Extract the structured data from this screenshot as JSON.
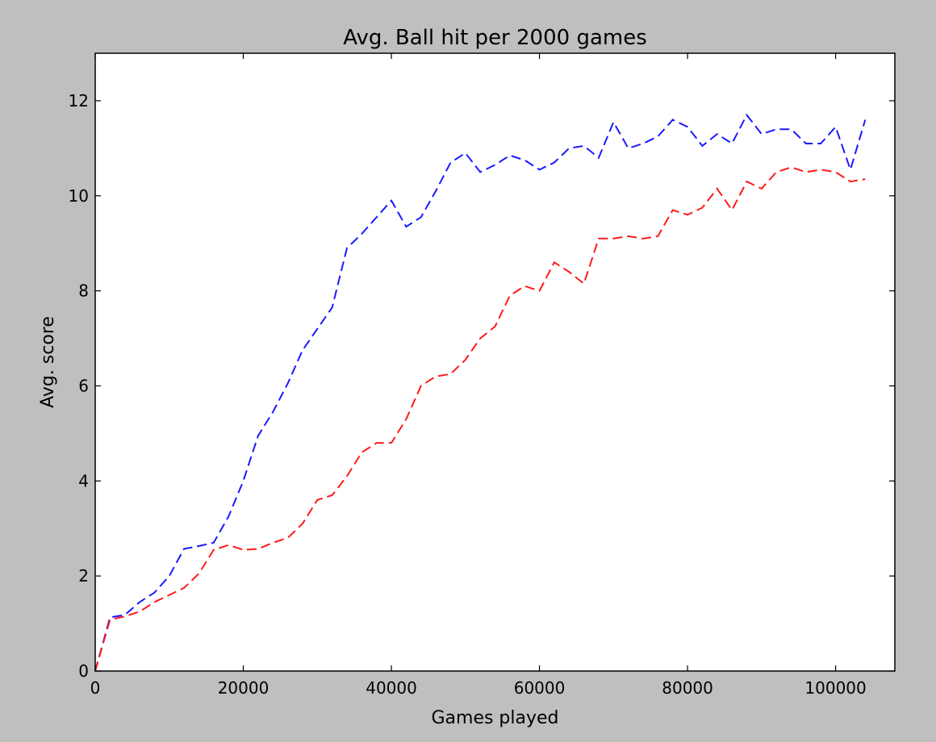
{
  "chart_data": {
    "type": "line",
    "title": "Avg. Ball hit per 2000 games",
    "xlabel": "Games played",
    "ylabel": "Avg. score",
    "xlim": [
      0,
      108000
    ],
    "ylim": [
      0,
      13
    ],
    "xticks": [
      0,
      20000,
      40000,
      60000,
      80000,
      100000
    ],
    "xtick_labels": [
      "0",
      "20000",
      "40000",
      "60000",
      "80000",
      "100000"
    ],
    "yticks": [
      0,
      2,
      4,
      6,
      8,
      10,
      12
    ],
    "ytick_labels": [
      "0",
      "2",
      "4",
      "6",
      "8",
      "10",
      "12"
    ],
    "grid": false,
    "legend": "none",
    "series": [
      {
        "color": "#1a1aff",
        "style": "dashed",
        "x": [
          0,
          2000,
          4000,
          6000,
          8000,
          10000,
          12000,
          14000,
          16000,
          18000,
          20000,
          22000,
          24000,
          26000,
          28000,
          30000,
          32000,
          34000,
          36000,
          38000,
          40000,
          42000,
          44000,
          46000,
          48000,
          50000,
          52000,
          54000,
          56000,
          58000,
          60000,
          62000,
          64000,
          66000,
          68000,
          70000,
          72000,
          74000,
          76000,
          78000,
          80000,
          82000,
          84000,
          86000,
          88000,
          90000,
          92000,
          94000,
          96000,
          98000,
          100000,
          102000,
          104000
        ],
        "y": [
          0,
          1.13,
          1.18,
          1.45,
          1.65,
          2.0,
          2.57,
          2.63,
          2.7,
          3.25,
          4.0,
          4.95,
          5.45,
          6.05,
          6.75,
          7.2,
          7.65,
          8.9,
          9.2,
          9.55,
          9.9,
          9.35,
          9.55,
          10.1,
          10.7,
          10.9,
          10.5,
          10.65,
          10.85,
          10.75,
          10.55,
          10.7,
          11.0,
          11.05,
          10.8,
          11.55,
          11.0,
          11.1,
          11.25,
          11.6,
          11.45,
          11.05,
          11.3,
          11.1,
          11.7,
          11.3,
          11.4,
          11.4,
          11.1,
          11.1,
          11.45,
          10.55,
          11.6
        ]
      },
      {
        "color": "#ff1a1a",
        "style": "dashed",
        "x": [
          0,
          2000,
          4000,
          6000,
          8000,
          10000,
          12000,
          14000,
          16000,
          18000,
          20000,
          22000,
          24000,
          26000,
          28000,
          30000,
          32000,
          34000,
          36000,
          38000,
          40000,
          42000,
          44000,
          46000,
          48000,
          50000,
          52000,
          54000,
          56000,
          58000,
          60000,
          62000,
          64000,
          66000,
          68000,
          70000,
          72000,
          74000,
          76000,
          78000,
          80000,
          82000,
          84000,
          86000,
          88000,
          90000,
          92000,
          94000,
          96000,
          98000,
          100000,
          102000,
          104000
        ],
        "y": [
          0,
          1.08,
          1.15,
          1.25,
          1.45,
          1.6,
          1.75,
          2.05,
          2.55,
          2.65,
          2.55,
          2.57,
          2.7,
          2.8,
          3.1,
          3.6,
          3.7,
          4.1,
          4.6,
          4.8,
          4.8,
          5.3,
          6.0,
          6.2,
          6.25,
          6.55,
          7.0,
          7.25,
          7.9,
          8.1,
          8.0,
          8.6,
          8.4,
          8.15,
          9.1,
          9.1,
          9.15,
          9.1,
          9.15,
          9.7,
          9.6,
          9.75,
          10.15,
          9.7,
          10.3,
          10.15,
          10.5,
          10.6,
          10.5,
          10.55,
          10.5,
          10.3,
          10.35
        ]
      }
    ]
  }
}
